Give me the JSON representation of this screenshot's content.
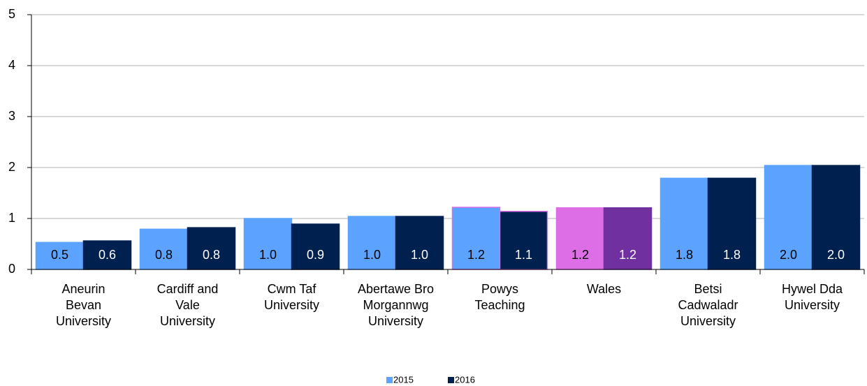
{
  "chart_data": {
    "type": "bar",
    "categories": [
      "Aneurin Bevan University",
      "Cardiff and Vale University",
      "Cwm Taf University",
      "Abertawe Bro Morgannwg University",
      "Powys Teaching",
      "Wales",
      "Betsi Cadwaladr University",
      "Hywel Dda University"
    ],
    "series": [
      {
        "name": "2015",
        "color": "#5ba3ff",
        "label_color": "#000000",
        "colors": [
          "#5ba3ff",
          "#5ba3ff",
          "#5ba3ff",
          "#5ba3ff",
          "#5ba3ff",
          "#dd6ee6",
          "#5ba3ff",
          "#5ba3ff"
        ],
        "edge_colors": [
          "#5ba3ff",
          "#5ba3ff",
          "#5ba3ff",
          "#5ba3ff",
          "#dd6ee6",
          "#dd6ee6",
          "#5ba3ff",
          "#5ba3ff"
        ],
        "values": [
          0.53,
          0.79,
          1.0,
          1.04,
          1.22,
          1.21,
          1.79,
          2.04
        ],
        "value_labels": [
          "0.5",
          "0.8",
          "1.0",
          "1.0",
          "1.2",
          "1.2",
          "1.8",
          "2.0"
        ]
      },
      {
        "name": "2016",
        "color": "#002050",
        "label_color": "#ffffff",
        "colors": [
          "#002050",
          "#002050",
          "#002050",
          "#002050",
          "#002050",
          "#7030a0",
          "#002050",
          "#002050"
        ],
        "edge_colors": [
          "#002050",
          "#002050",
          "#002050",
          "#002050",
          "#dd6ee6",
          "#7030a0",
          "#002050",
          "#002050"
        ],
        "values": [
          0.56,
          0.82,
          0.89,
          1.04,
          1.14,
          1.21,
          1.79,
          2.04
        ],
        "value_labels": [
          "0.6",
          "0.8",
          "0.9",
          "1.0",
          "1.1",
          "1.2",
          "1.8",
          "2.0"
        ]
      }
    ],
    "ylim": [
      0,
      5
    ],
    "yticks": [
      0,
      1,
      2,
      3,
      4,
      5
    ],
    "grid": true,
    "legend": "bottom"
  }
}
